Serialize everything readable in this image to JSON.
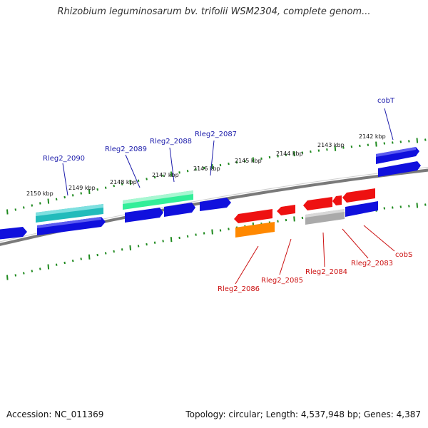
{
  "title": "Rhizobium leguminosarum bv. trifolii WSM2304, complete genom...",
  "accession": "Accession: NC_011369",
  "topology": "Topology: circular; Length: 4,537,948 bp; Genes: 4,387",
  "colors": {
    "backbone": "#7a7a7a",
    "ticks": "#1f8a1f",
    "forward_label": "#1a1aaa",
    "reverse_label": "#cc1111",
    "cds_blue": "#1010dd",
    "cds_red": "#ee1111",
    "cds_cyan": "#22bbbb",
    "cds_green": "#33ee99",
    "cds_orange": "#ff8800",
    "cds_gray": "#aaaaaa"
  },
  "tick_labels": [
    {
      "text": "2142 kbp",
      "kbp": 2142
    },
    {
      "text": "2143 kbp",
      "kbp": 2143
    },
    {
      "text": "2144 kbp",
      "kbp": 2144
    },
    {
      "text": "2145 kbp",
      "kbp": 2145
    },
    {
      "text": "2146 kbp",
      "kbp": 2146
    },
    {
      "text": "2147 kbp",
      "kbp": 2147
    },
    {
      "text": "2148 kbp",
      "kbp": 2148
    },
    {
      "text": "2149 kbp",
      "kbp": 2149
    },
    {
      "text": "2150 kbp",
      "kbp": 2150
    }
  ],
  "forward_labels": [
    "cobT",
    "Rleg2_2087",
    "Rleg2_2088",
    "Rleg2_2089",
    "Rleg2_2090"
  ],
  "reverse_labels": [
    "cobS",
    "Rleg2_2083",
    "Rleg2_2084",
    "Rleg2_2085",
    "Rleg2_2086"
  ]
}
